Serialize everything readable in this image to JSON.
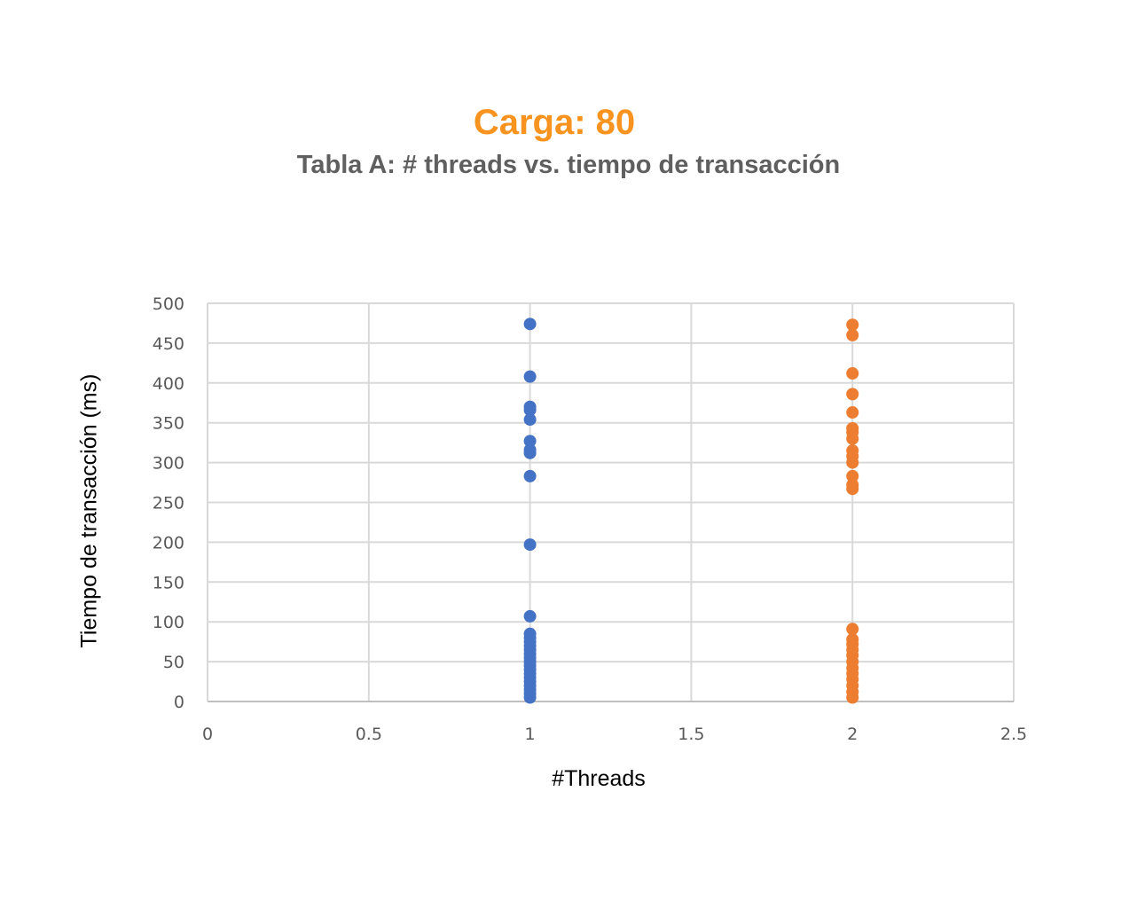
{
  "chart_data": {
    "type": "scatter",
    "title": "Carga: 80",
    "subtitle": "Tabla A: # threads vs. tiempo de transacción",
    "xlabel": "#Threads",
    "ylabel": "Tiempo de transacción (ms)",
    "xlim": [
      0,
      2.5
    ],
    "ylim": [
      0,
      500
    ],
    "x_ticks": [
      "0",
      "0.5",
      "1",
      "1.5",
      "2",
      "2.5"
    ],
    "y_ticks": [
      "0",
      "50",
      "100",
      "150",
      "200",
      "250",
      "300",
      "350",
      "400",
      "450",
      "500"
    ],
    "grid": true,
    "legend": "none",
    "series": [
      {
        "color": "#4472c4",
        "x": 1,
        "y": [
          474,
          408,
          370,
          366,
          354,
          327,
          316,
          312,
          283,
          197,
          107,
          85,
          80,
          75,
          70,
          65,
          60,
          55,
          50,
          45,
          40,
          35,
          30,
          25,
          20,
          15,
          10,
          5
        ]
      },
      {
        "color": "#ed7d31",
        "x": 2,
        "y": [
          473,
          460,
          412,
          386,
          363,
          343,
          338,
          330,
          315,
          308,
          300,
          283,
          272,
          267,
          91,
          78,
          72,
          65,
          58,
          50,
          42,
          35,
          28,
          20,
          12,
          5
        ]
      }
    ]
  }
}
